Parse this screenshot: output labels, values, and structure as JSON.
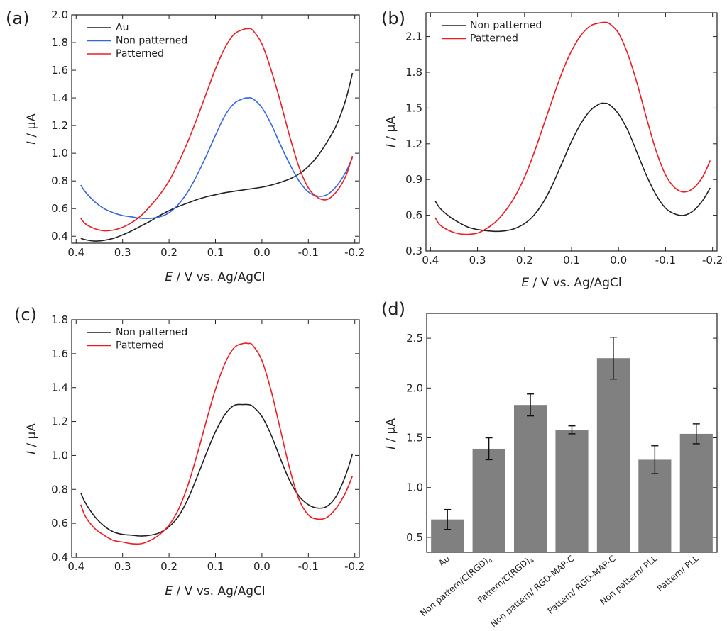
{
  "figure": {
    "background": "#ffffff"
  },
  "chart_data": [
    {
      "id": "a",
      "panel_label": "(a)",
      "type": "line",
      "title": "",
      "xlabel_var": "E",
      "xlabel_unit": " / V vs. Ag/AgCl",
      "ylabel_var": "I",
      "ylabel_unit": " / µA",
      "xlim": [
        0.4,
        -0.2
      ],
      "ylim": [
        0.35,
        2.0
      ],
      "xticks": [
        "0.4",
        "0.3",
        "0.2",
        "0.1",
        "0.0",
        "-0.1",
        "-0.2"
      ],
      "xtick_values": [
        0.4,
        0.3,
        0.2,
        0.1,
        0.0,
        -0.1,
        -0.2
      ],
      "yticks": [
        "0.4",
        "0.6",
        "0.8",
        "1.0",
        "1.2",
        "1.4",
        "1.6",
        "1.8",
        "2.0"
      ],
      "ytick_values": [
        0.4,
        0.6,
        0.8,
        1.0,
        1.2,
        1.4,
        1.6,
        1.8,
        2.0
      ],
      "legend_position": "top-left",
      "series": [
        {
          "name": "Au",
          "color": "#231f20",
          "x": [
            0.39,
            0.38,
            0.36,
            0.34,
            0.32,
            0.3,
            0.28,
            0.26,
            0.24,
            0.22,
            0.2,
            0.18,
            0.16,
            0.14,
            0.12,
            0.1,
            0.08,
            0.06,
            0.04,
            0.02,
            0.0,
            -0.02,
            -0.04,
            -0.06,
            -0.08,
            -0.1,
            -0.12,
            -0.14,
            -0.16,
            -0.18,
            -0.195
          ],
          "y": [
            0.385,
            0.375,
            0.365,
            0.37,
            0.385,
            0.41,
            0.44,
            0.475,
            0.51,
            0.55,
            0.585,
            0.615,
            0.64,
            0.665,
            0.685,
            0.7,
            0.715,
            0.725,
            0.735,
            0.745,
            0.755,
            0.77,
            0.79,
            0.815,
            0.85,
            0.905,
            0.98,
            1.08,
            1.2,
            1.38,
            1.58
          ]
        },
        {
          "name": "Non patterned",
          "color": "#3366e0",
          "x": [
            0.39,
            0.38,
            0.36,
            0.34,
            0.32,
            0.3,
            0.28,
            0.26,
            0.24,
            0.22,
            0.2,
            0.18,
            0.16,
            0.14,
            0.12,
            0.1,
            0.08,
            0.06,
            0.04,
            0.03,
            0.02,
            0.0,
            -0.02,
            -0.04,
            -0.06,
            -0.08,
            -0.1,
            -0.12,
            -0.14,
            -0.16,
            -0.18,
            -0.195
          ],
          "y": [
            0.77,
            0.72,
            0.65,
            0.6,
            0.57,
            0.55,
            0.54,
            0.53,
            0.53,
            0.54,
            0.57,
            0.63,
            0.72,
            0.84,
            0.98,
            1.13,
            1.27,
            1.36,
            1.395,
            1.4,
            1.395,
            1.33,
            1.21,
            1.06,
            0.92,
            0.8,
            0.72,
            0.69,
            0.7,
            0.76,
            0.86,
            0.97
          ]
        },
        {
          "name": "Patterned",
          "color": "#ed1c24",
          "x": [
            0.39,
            0.38,
            0.36,
            0.34,
            0.32,
            0.3,
            0.28,
            0.26,
            0.24,
            0.22,
            0.2,
            0.18,
            0.16,
            0.14,
            0.12,
            0.1,
            0.08,
            0.06,
            0.04,
            0.03,
            0.02,
            0.0,
            -0.02,
            -0.04,
            -0.06,
            -0.08,
            -0.1,
            -0.12,
            -0.14,
            -0.16,
            -0.18,
            -0.195
          ],
          "y": [
            0.53,
            0.49,
            0.455,
            0.44,
            0.445,
            0.465,
            0.5,
            0.55,
            0.62,
            0.7,
            0.8,
            0.93,
            1.08,
            1.25,
            1.43,
            1.61,
            1.76,
            1.86,
            1.895,
            1.9,
            1.89,
            1.79,
            1.6,
            1.37,
            1.12,
            0.9,
            0.75,
            0.68,
            0.665,
            0.72,
            0.83,
            0.98
          ]
        }
      ]
    },
    {
      "id": "b",
      "panel_label": "(b)",
      "type": "line",
      "title": "",
      "xlabel_var": "E",
      "xlabel_unit": " / V vs. Ag/AgCl",
      "ylabel_var": "I",
      "ylabel_unit": " / µA",
      "xlim": [
        0.4,
        -0.2
      ],
      "ylim": [
        0.3,
        2.3
      ],
      "xticks": [
        "0.4",
        "0.3",
        "0.2",
        "0.1",
        "0.0",
        "-0.1",
        "-0.2"
      ],
      "xtick_values": [
        0.4,
        0.3,
        0.2,
        0.1,
        0.0,
        -0.1,
        -0.2
      ],
      "yticks": [
        "0.3",
        "0.6",
        "0.9",
        "1.2",
        "1.5",
        "1.8",
        "2.1"
      ],
      "ytick_values": [
        0.3,
        0.6,
        0.9,
        1.2,
        1.5,
        1.8,
        2.1
      ],
      "legend_position": "top-left",
      "series": [
        {
          "name": "Non patterned",
          "color": "#231f20",
          "x": [
            0.39,
            0.38,
            0.36,
            0.34,
            0.32,
            0.3,
            0.28,
            0.26,
            0.24,
            0.22,
            0.2,
            0.18,
            0.16,
            0.14,
            0.12,
            0.1,
            0.08,
            0.06,
            0.04,
            0.03,
            0.02,
            0.0,
            -0.02,
            -0.04,
            -0.06,
            -0.08,
            -0.1,
            -0.12,
            -0.14,
            -0.16,
            -0.18,
            -0.195
          ],
          "y": [
            0.72,
            0.66,
            0.59,
            0.54,
            0.5,
            0.48,
            0.47,
            0.465,
            0.47,
            0.49,
            0.53,
            0.6,
            0.71,
            0.86,
            1.04,
            1.22,
            1.37,
            1.48,
            1.535,
            1.54,
            1.53,
            1.45,
            1.31,
            1.12,
            0.93,
            0.77,
            0.66,
            0.61,
            0.6,
            0.64,
            0.73,
            0.83
          ]
        },
        {
          "name": "Patterned",
          "color": "#ed1c24",
          "x": [
            0.39,
            0.38,
            0.36,
            0.34,
            0.32,
            0.3,
            0.28,
            0.26,
            0.24,
            0.22,
            0.2,
            0.18,
            0.16,
            0.14,
            0.12,
            0.1,
            0.08,
            0.06,
            0.04,
            0.03,
            0.02,
            0.0,
            -0.02,
            -0.04,
            -0.06,
            -0.08,
            -0.1,
            -0.12,
            -0.14,
            -0.16,
            -0.18,
            -0.195
          ],
          "y": [
            0.58,
            0.52,
            0.47,
            0.445,
            0.44,
            0.45,
            0.49,
            0.55,
            0.64,
            0.76,
            0.92,
            1.12,
            1.35,
            1.58,
            1.8,
            1.98,
            2.11,
            2.19,
            2.215,
            2.22,
            2.21,
            2.13,
            1.95,
            1.7,
            1.41,
            1.14,
            0.94,
            0.83,
            0.795,
            0.83,
            0.93,
            1.06
          ]
        }
      ]
    },
    {
      "id": "c",
      "panel_label": "(c)",
      "type": "line",
      "title": "",
      "xlabel_var": "E",
      "xlabel_unit": " / V vs. Ag/AgCl",
      "ylabel_var": "I",
      "ylabel_unit": " / µA",
      "xlim": [
        0.4,
        -0.2
      ],
      "ylim": [
        0.4,
        1.8
      ],
      "xticks": [
        "0.4",
        "0.3",
        "0.2",
        "0.1",
        "0.0",
        "-0.1",
        "-0.2"
      ],
      "xtick_values": [
        0.4,
        0.3,
        0.2,
        0.1,
        0.0,
        -0.1,
        -0.2
      ],
      "yticks": [
        "0.4",
        "0.6",
        "0.8",
        "1.0",
        "1.2",
        "1.4",
        "1.6",
        "1.8"
      ],
      "ytick_values": [
        0.4,
        0.6,
        0.8,
        1.0,
        1.2,
        1.4,
        1.6,
        1.8
      ],
      "legend_position": "top-left",
      "series": [
        {
          "name": "Non patterned",
          "color": "#231f20",
          "x": [
            0.39,
            0.38,
            0.36,
            0.34,
            0.32,
            0.3,
            0.28,
            0.26,
            0.24,
            0.22,
            0.2,
            0.18,
            0.16,
            0.14,
            0.12,
            0.1,
            0.08,
            0.06,
            0.04,
            0.03,
            0.02,
            0.0,
            -0.02,
            -0.04,
            -0.06,
            -0.08,
            -0.1,
            -0.12,
            -0.14,
            -0.16,
            -0.18,
            -0.195
          ],
          "y": [
            0.78,
            0.72,
            0.64,
            0.585,
            0.55,
            0.535,
            0.53,
            0.525,
            0.53,
            0.545,
            0.58,
            0.64,
            0.74,
            0.87,
            1.01,
            1.14,
            1.24,
            1.295,
            1.3,
            1.3,
            1.29,
            1.23,
            1.12,
            0.98,
            0.85,
            0.76,
            0.71,
            0.69,
            0.7,
            0.76,
            0.88,
            1.01
          ]
        },
        {
          "name": "Patterned",
          "color": "#ed1c24",
          "x": [
            0.39,
            0.38,
            0.36,
            0.34,
            0.32,
            0.3,
            0.28,
            0.26,
            0.24,
            0.22,
            0.2,
            0.18,
            0.16,
            0.14,
            0.12,
            0.1,
            0.08,
            0.06,
            0.04,
            0.03,
            0.02,
            0.0,
            -0.02,
            -0.04,
            -0.06,
            -0.08,
            -0.1,
            -0.12,
            -0.14,
            -0.16,
            -0.18,
            -0.195
          ],
          "y": [
            0.71,
            0.64,
            0.57,
            0.53,
            0.5,
            0.49,
            0.48,
            0.48,
            0.5,
            0.535,
            0.59,
            0.68,
            0.82,
            1.0,
            1.2,
            1.39,
            1.54,
            1.635,
            1.66,
            1.66,
            1.65,
            1.56,
            1.38,
            1.15,
            0.92,
            0.74,
            0.65,
            0.625,
            0.635,
            0.69,
            0.78,
            0.88
          ]
        }
      ]
    },
    {
      "id": "d",
      "panel_label": "(d)",
      "type": "bar",
      "title": "",
      "xlabel": "",
      "ylabel_var": "I",
      "ylabel_unit": " / µA",
      "ylim": [
        0.35,
        2.75
      ],
      "yticks": [
        "0.5",
        "1.0",
        "1.5",
        "2.0",
        "2.5"
      ],
      "ytick_values": [
        0.5,
        1.0,
        1.5,
        2.0,
        2.5
      ],
      "bar_color": "#808080",
      "categories": [
        "Au",
        "Non pattern/C(RGD)",
        "Pattern/C(RGD)",
        "Non pattern/ RGD-MAP-C",
        "Pattern/ RGD-MAP-C",
        "Non pattern/ PLL",
        "Pattern/ PLL"
      ],
      "category_subscripts": [
        "",
        "4",
        "4",
        "",
        "",
        "",
        ""
      ],
      "values": [
        0.68,
        1.39,
        1.83,
        1.58,
        2.3,
        1.28,
        1.54
      ],
      "errors": [
        0.1,
        0.11,
        0.11,
        0.04,
        0.21,
        0.14,
        0.1
      ]
    }
  ]
}
